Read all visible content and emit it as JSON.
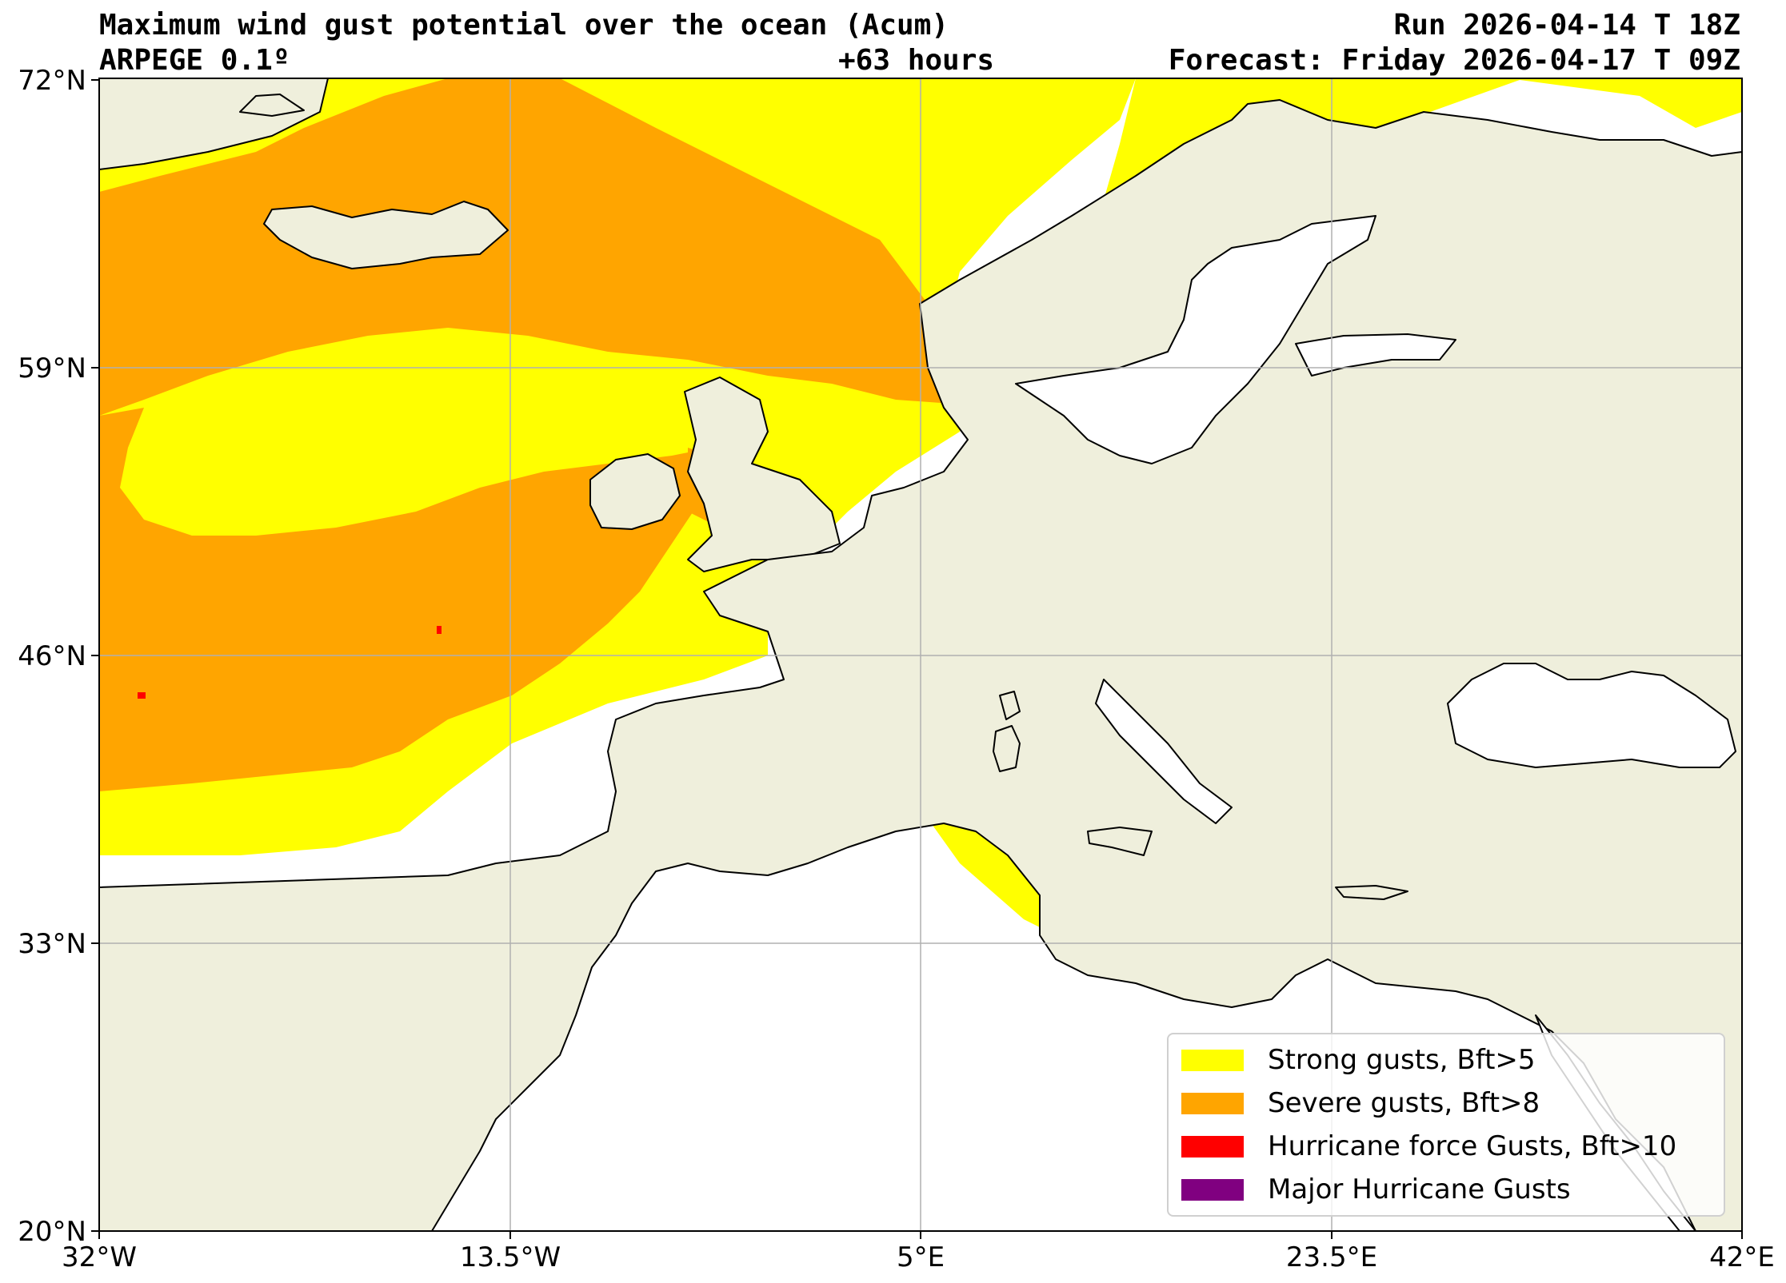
{
  "header": {
    "title": "Maximum wind gust potential over the ocean (Acum)",
    "model": "ARPEGE 0.1º",
    "lead_time": "+63 hours",
    "run": "Run 2026-04-14 T 18Z",
    "forecast": "Forecast: Friday 2026-04-17 T 09Z"
  },
  "axes": {
    "lat_labels": [
      "72°N",
      "59°N",
      "46°N",
      "33°N",
      "20°N"
    ],
    "lon_labels": [
      "32°W",
      "13.5°W",
      "5°E",
      "23.5°E",
      "42°E"
    ]
  },
  "legend": {
    "placement": "bottom-right",
    "items": [
      {
        "label": "Strong gusts, Bft>5",
        "color": "#ffff00"
      },
      {
        "label": "Severe gusts, Bft>8",
        "color": "#ffa500"
      },
      {
        "label": "Hurricane force Gusts, Bft>10",
        "color": "#ff0000"
      },
      {
        "label": "Major Hurricane Gusts",
        "color": "#800080"
      }
    ]
  },
  "colors": {
    "land": "#efefdc",
    "sea": "#ffffff",
    "grid": "#b0b0b0"
  }
}
